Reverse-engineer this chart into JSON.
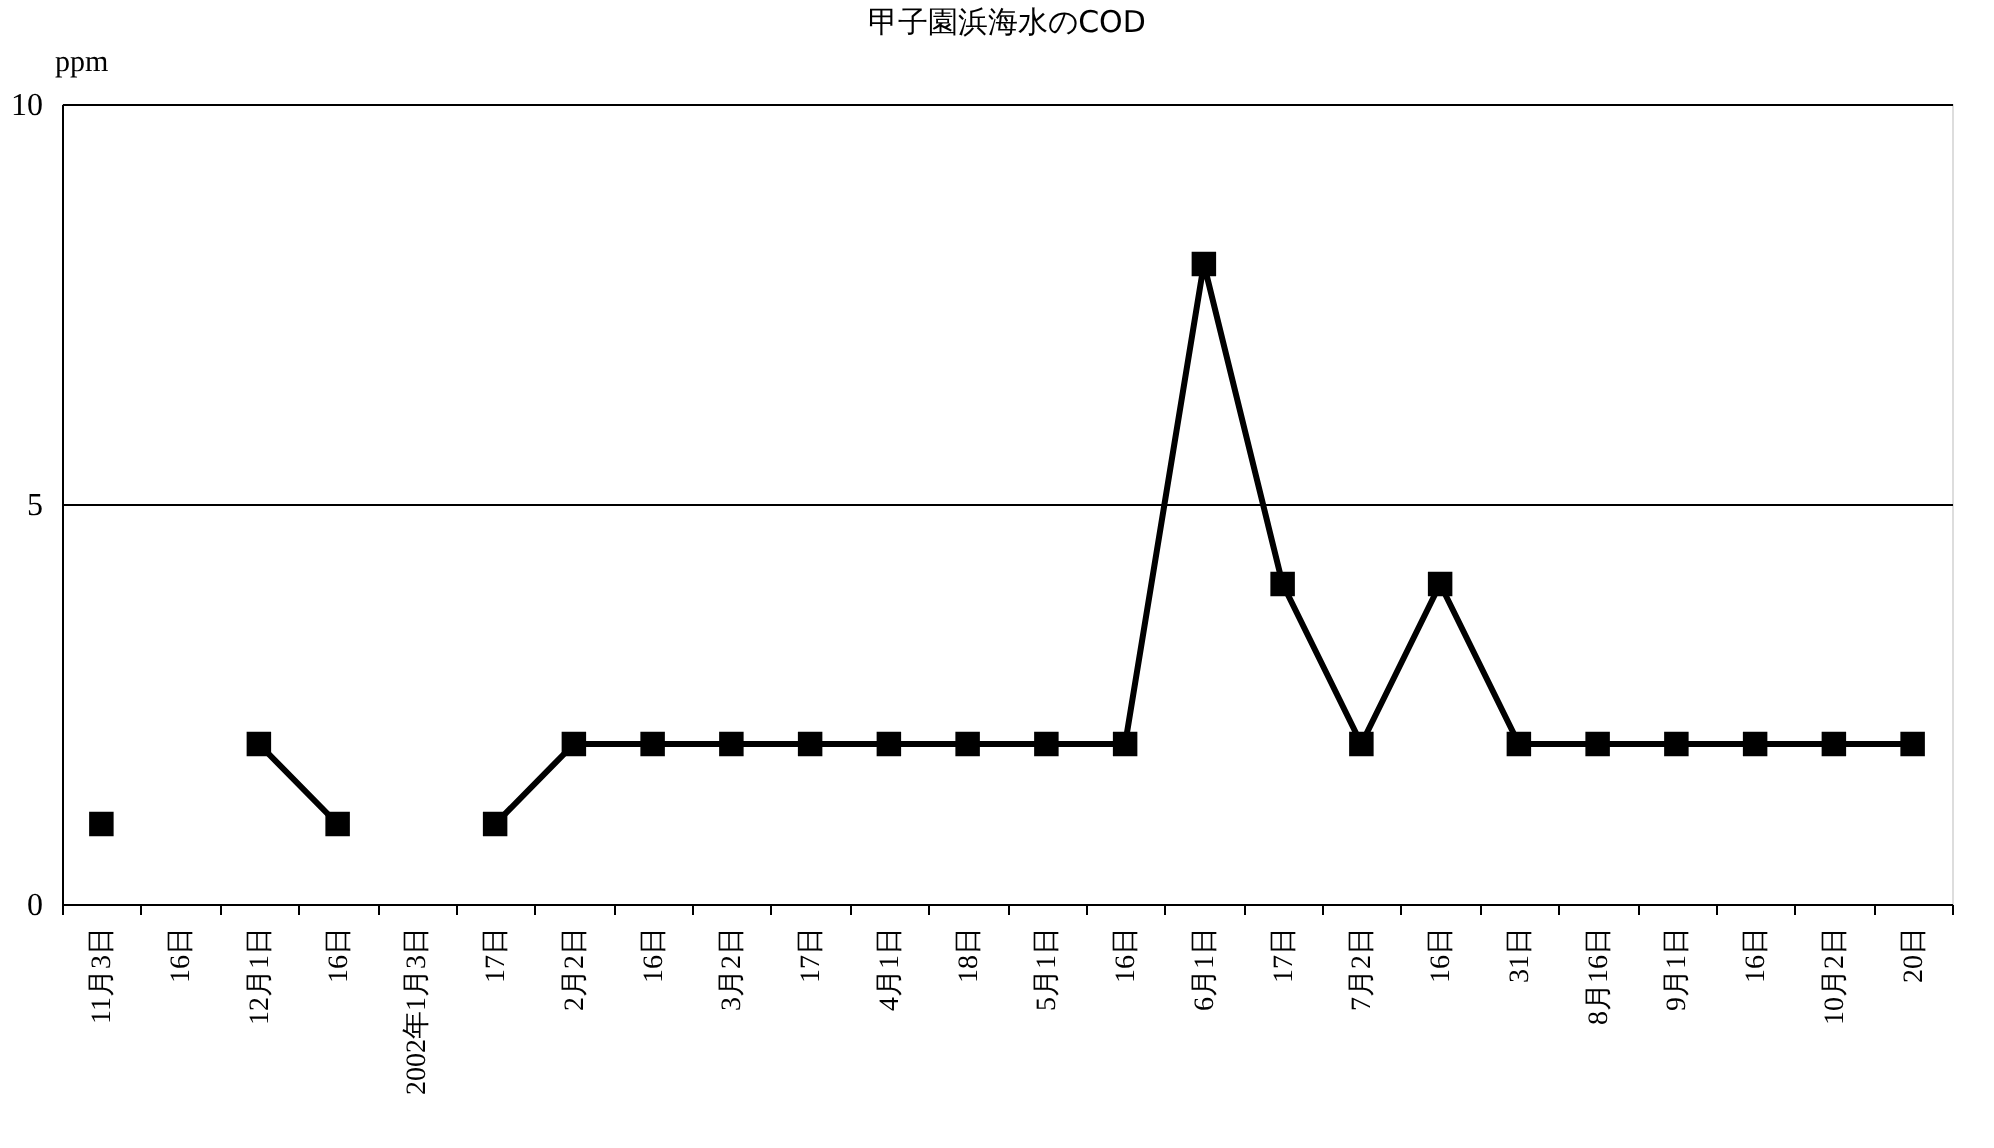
{
  "chart_data": {
    "type": "line",
    "title": "甲子園浜海水のCOD",
    "ylabel": "ppm",
    "categories": [
      "11月3日",
      "16日",
      "12月1日",
      "16日",
      "2002年1月3日",
      "17日",
      "2月2日",
      "16日",
      "3月2日",
      "17日",
      "4月1日",
      "18日",
      "5月1日",
      "16日",
      "6月1日",
      "17日",
      "7月2日",
      "16日",
      "31日",
      "8月16日",
      "9月1日",
      "16日",
      "10月2日",
      "20日"
    ],
    "series": [
      {
        "color": "#000000",
        "values": [
          1,
          null,
          2,
          1,
          null,
          1,
          2,
          2,
          2,
          2,
          2,
          2,
          2,
          2,
          8,
          4,
          2,
          4,
          2,
          2,
          2,
          2,
          2,
          2
        ]
      }
    ],
    "ylim": [
      0,
      10
    ],
    "yticks": [
      0,
      5,
      10
    ],
    "grid": "y",
    "marker": "square",
    "line_style": "solid",
    "legend": false
  }
}
